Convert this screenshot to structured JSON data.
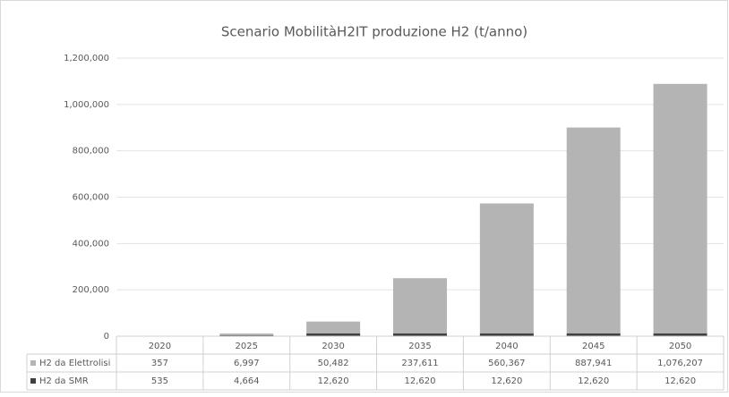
{
  "chart_data": {
    "type": "stacked-bar",
    "title": "Scenario MobilitàH2IT produzione H2 (t/anno)",
    "categories": [
      "2020",
      "2025",
      "2030",
      "2035",
      "2040",
      "2045",
      "2050"
    ],
    "series": [
      {
        "name": "H2 da Elettrolisi",
        "color": "#b4b4b4",
        "values": [
          357,
          6997,
          50482,
          237611,
          560367,
          887941,
          1076207
        ],
        "value_labels": [
          "357",
          "6,997",
          "50,482",
          "237,611",
          "560,367",
          "887,941",
          "1,076,207"
        ]
      },
      {
        "name": "H2 da SMR",
        "color": "#404040",
        "values": [
          535,
          4664,
          12620,
          12620,
          12620,
          12620,
          12620
        ],
        "value_labels": [
          "535",
          "4,664",
          "12,620",
          "12,620",
          "12,620",
          "12,620",
          "12,620"
        ]
      }
    ],
    "ylim": [
      0,
      1200000
    ],
    "yticks": [
      0,
      {
        "value": 200000,
        "label": "200,000"
      },
      {
        "value": 400000,
        "label": "400,000"
      },
      {
        "value": 600000,
        "label": "600,000"
      },
      {
        "value": 800000,
        "label": "800,000"
      },
      {
        "value": 1000000,
        "label": "1,000,000"
      },
      {
        "value": 1200000,
        "label": "1,200,000"
      }
    ],
    "grid": true
  }
}
